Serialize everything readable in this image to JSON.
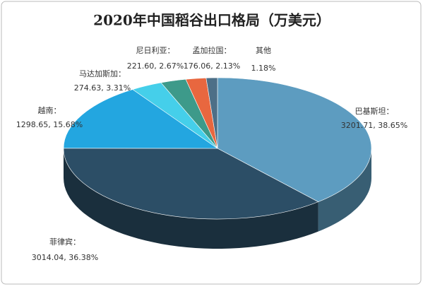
{
  "chart_data": {
    "type": "pie3d",
    "title": "2020年中国稻谷出口格局（万美元）",
    "categories": [
      "巴基斯坦：",
      "菲律宾：",
      "越南：",
      "马达加斯加：",
      "尼日利亚：",
      "孟加拉国：",
      "其他"
    ],
    "values": [
      38.65,
      36.38,
      15.68,
      3.31,
      2.67,
      2.13,
      1.18
    ],
    "value_labels": [
      "3201.71, 38.65%",
      "3014.04, 36.38%",
      "1298.65, 15.68%",
      "274.63, 3.31%",
      "221.60, 2.67%",
      "176.06, 2.13%",
      "1.18%"
    ],
    "colors": [
      "#5d9cc0",
      "#2c4e66",
      "#23a6e0",
      "#45cfea",
      "#3d9a8a",
      "#e8673f",
      "#4d6f87"
    ]
  }
}
